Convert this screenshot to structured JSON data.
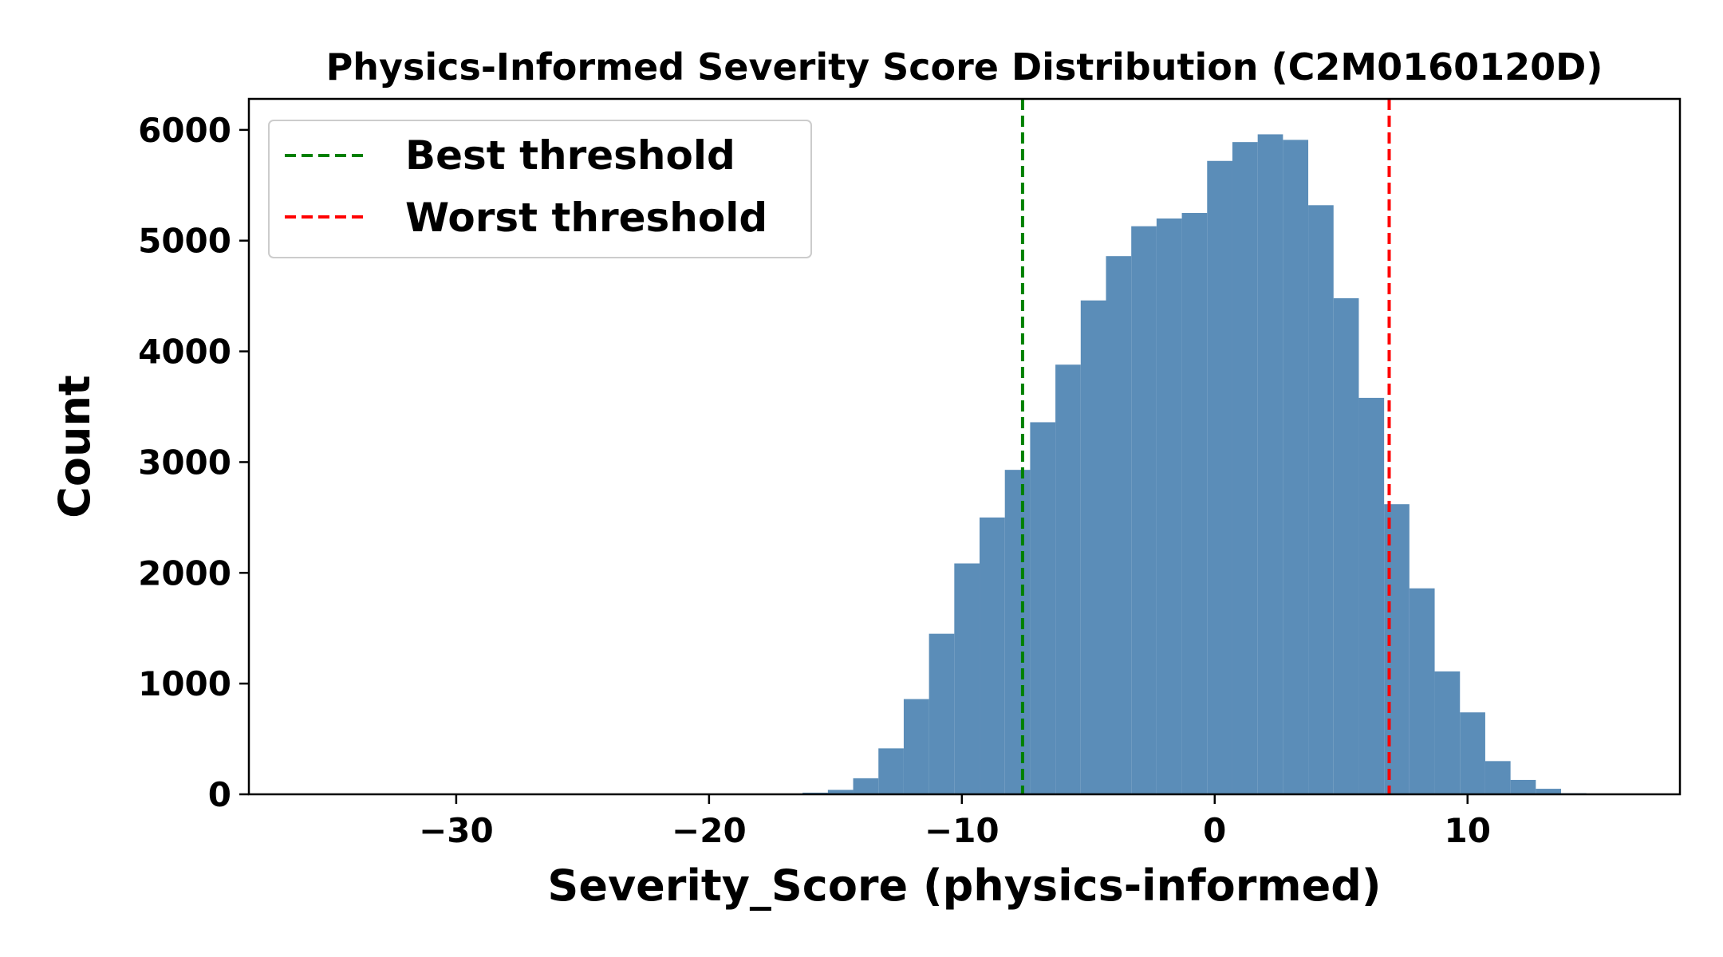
{
  "chart_data": {
    "type": "bar",
    "title": "Physics-Informed Severity Score Distribution (C2M0160120D)",
    "xlabel": "Severity_Score (physics-informed)",
    "ylabel": "Count",
    "xlim": [
      -38.2,
      18.4
    ],
    "ylim": [
      0,
      6280
    ],
    "xticks": [
      -30,
      -20,
      -10,
      0,
      10
    ],
    "xtick_labels": [
      "−30",
      "−20",
      "−10",
      "0",
      "10"
    ],
    "yticks": [
      0,
      1000,
      2000,
      3000,
      4000,
      5000,
      6000
    ],
    "ytick_labels": [
      "0",
      "1000",
      "2000",
      "3000",
      "4000",
      "5000",
      "6000"
    ],
    "grid": false,
    "legend_position": "top-left",
    "bar_color": "#5b8db8",
    "bin_edges": [
      -16.3,
      -15.3,
      -14.3,
      -13.3,
      -12.3,
      -11.3,
      -10.3,
      -9.3,
      -8.3,
      -7.3,
      -6.3,
      -5.3,
      -4.3,
      -3.3,
      -2.3,
      -1.3,
      -0.3,
      0.7,
      1.7,
      2.7,
      3.7,
      4.7,
      5.7,
      6.7,
      7.7,
      8.7,
      9.7,
      10.7,
      11.7,
      12.7,
      13.7,
      14.7,
      15.7
    ],
    "counts": [
      15,
      40,
      145,
      415,
      860,
      1450,
      2085,
      2500,
      2930,
      3360,
      3880,
      4460,
      4860,
      5130,
      5200,
      5250,
      5720,
      5890,
      5960,
      5910,
      5320,
      4480,
      3580,
      2620,
      1860,
      1110,
      740,
      300,
      130,
      50,
      10,
      0
    ],
    "vlines": [
      {
        "name": "Best threshold",
        "x": -7.6,
        "color": "#008000"
      },
      {
        "name": "Worst threshold",
        "x": 6.9,
        "color": "#ff0000"
      }
    ]
  }
}
